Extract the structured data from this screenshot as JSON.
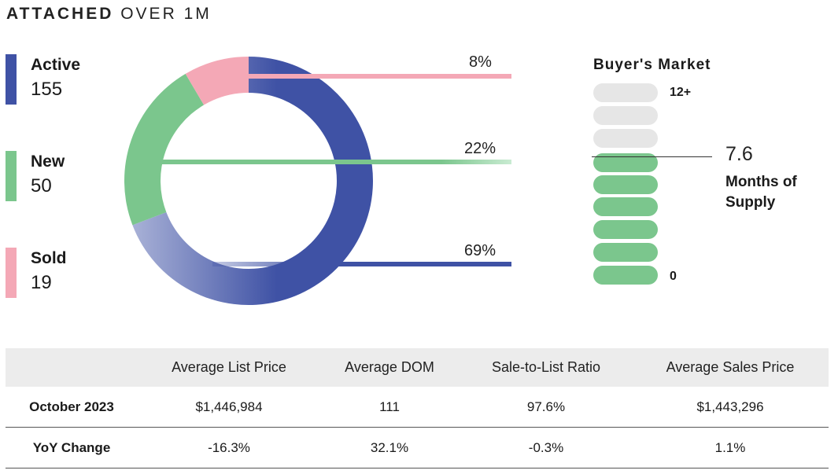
{
  "title": {
    "bold": "ATTACHED",
    "light": "OVER 1M"
  },
  "legend": [
    {
      "label": "Active",
      "value": "155",
      "color": "#3f52a5"
    },
    {
      "label": "New",
      "value": "50",
      "color": "#7bc68d"
    },
    {
      "label": "Sold",
      "value": "19",
      "color": "#f4a8b6"
    }
  ],
  "chart_data": {
    "type": "pie",
    "style": "donut",
    "categories": [
      "Active",
      "New",
      "Sold"
    ],
    "values": [
      155,
      50,
      19
    ],
    "percent_labels": [
      "69%",
      "22%",
      "8%"
    ],
    "colors": [
      "#3f52a5",
      "#7bc68d",
      "#f4a8b6"
    ]
  },
  "market": {
    "title": "Buyer's Market",
    "scale_top": "12+",
    "scale_bottom": "0",
    "months_of_supply": "7.6",
    "supply_label": "Months of Supply",
    "filled_color": "#7bc68d",
    "empty_color": "#e6e6e6"
  },
  "stats": {
    "headers": [
      "",
      "Average List Price",
      "Average DOM",
      "Sale-to-List Ratio",
      "Average Sales Price"
    ],
    "rows": [
      {
        "label": "October 2023",
        "values": [
          "$1,446,984",
          "111",
          "97.6%",
          "$1,443,296"
        ]
      },
      {
        "label": "YoY Change",
        "values": [
          "-16.3%",
          "32.1%",
          "-0.3%",
          "1.1%"
        ]
      }
    ]
  }
}
